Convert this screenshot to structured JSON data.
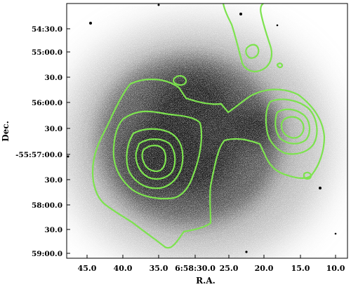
{
  "axes": {
    "xlabel": "R.A.",
    "ylabel": "Dec.",
    "xticks": [
      "45.0",
      "40.0",
      "35.0",
      "6:58:30.0",
      "25.0",
      "20.0",
      "15.0",
      "10.0"
    ],
    "yticks": [
      "54:30.0",
      "55:00.0",
      "30.0",
      "56:00.0",
      "30.0",
      "-55:57:00.0",
      "30.0",
      "58:00.0",
      "30.0",
      "59:00.0"
    ]
  },
  "overlay": {
    "contour_color": "#7de34f",
    "background_image": "greyscale X-ray photon map",
    "image_tone": "#111111"
  }
}
